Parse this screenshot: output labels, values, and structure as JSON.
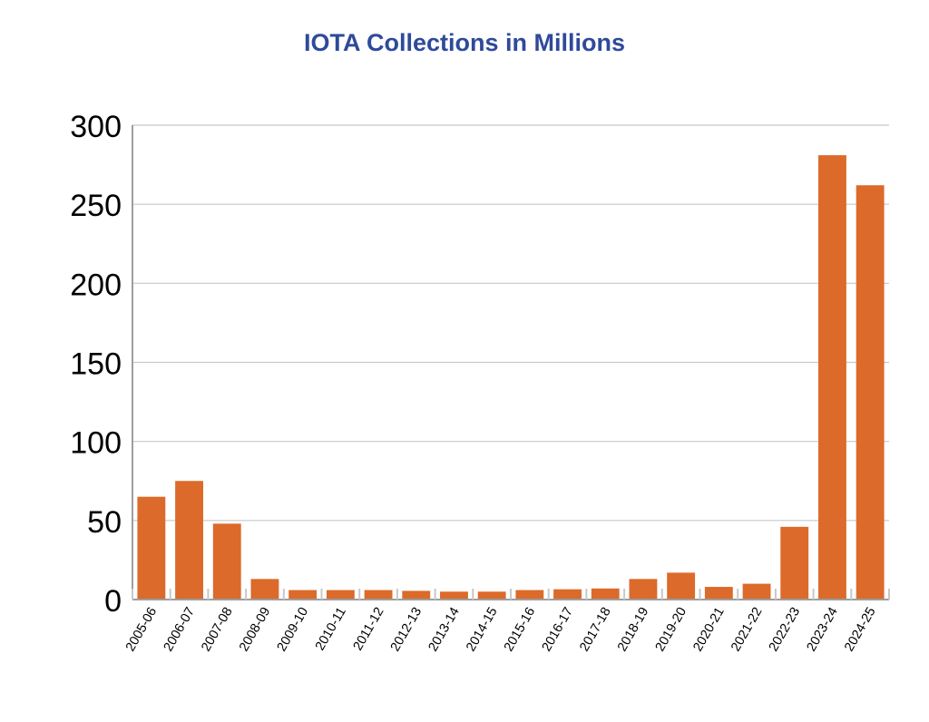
{
  "colors": {
    "bar": "#dc6a2a",
    "title": "#2e4a9a",
    "grid": "#c8c8c8",
    "axis": "#9e9e9e",
    "text": "#000000"
  },
  "chart_data": {
    "type": "bar",
    "title": "IOTA Collections in Millions",
    "xlabel": "",
    "ylabel": "",
    "ylim": [
      0,
      300
    ],
    "yticks": [
      0,
      50,
      100,
      150,
      200,
      250,
      300
    ],
    "grid": true,
    "legend": "none",
    "categories": [
      "2005-06",
      "2006-07",
      "2007-08",
      "2008-09",
      "2009-10",
      "2010-11",
      "2011-12",
      "2012-13",
      "2013-14",
      "2014-15",
      "2015-16",
      "2016-17",
      "2017-18",
      "2018-19",
      "2019-20",
      "2020-21",
      "2021-22",
      "2022-23",
      "2023-24",
      "2024-25"
    ],
    "values": [
      65,
      75,
      48,
      13,
      6,
      6,
      6,
      5.5,
      5,
      5,
      6,
      6.5,
      7,
      13,
      17,
      8,
      10,
      46,
      281,
      262
    ]
  }
}
